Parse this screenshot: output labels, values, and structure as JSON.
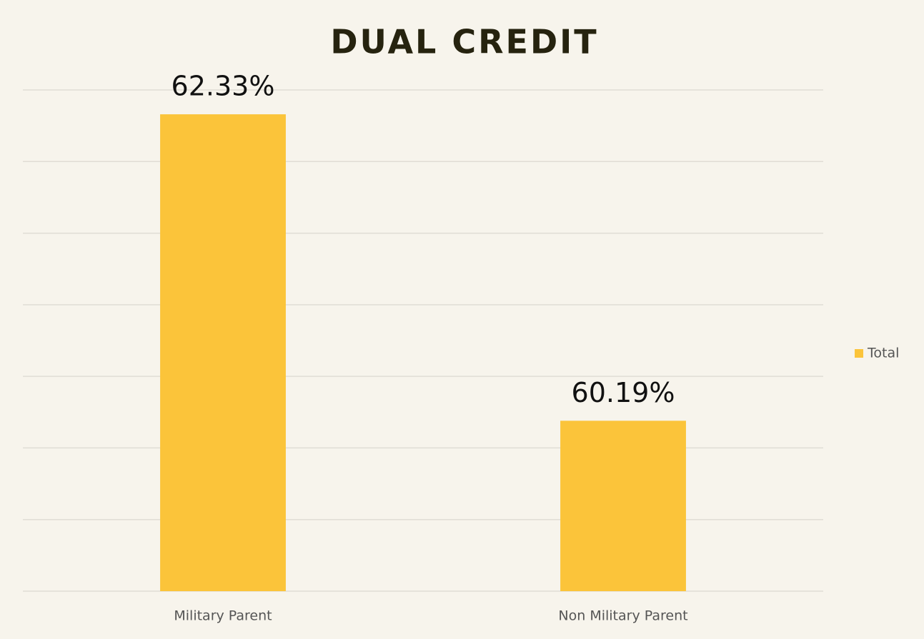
{
  "chart_data": {
    "type": "bar",
    "title": "DUAL CREDIT",
    "categories": [
      "Military Parent",
      "Non Military Parent"
    ],
    "series": [
      {
        "name": "Total",
        "color": "#fbc43a",
        "values": [
          62.33,
          60.19
        ],
        "value_labels": [
          "62.33%",
          "60.19%"
        ]
      }
    ],
    "ylim": [
      59,
      62.5
    ],
    "yticks": [
      59,
      59.5,
      60,
      60.5,
      61,
      61.5,
      62,
      62.5
    ],
    "grid": true,
    "legend": "right"
  }
}
